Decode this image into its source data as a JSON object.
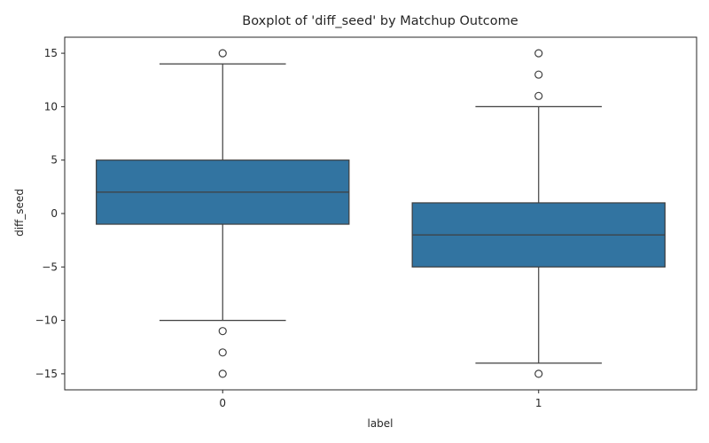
{
  "chart_data": {
    "type": "boxplot",
    "title": "Boxplot of 'diff_seed' by Matchup Outcome",
    "xlabel": "label",
    "ylabel": "diff_seed",
    "ylim": [
      -16.5,
      16.5
    ],
    "yticks": [
      -15,
      -10,
      -5,
      0,
      5,
      10,
      15
    ],
    "ytick_labels": [
      "−15",
      "−10",
      "−5",
      "0",
      "5",
      "10",
      "15"
    ],
    "categories": [
      "0",
      "1"
    ],
    "boxes": [
      {
        "category": "0",
        "whisker_low": -10,
        "q1": -1,
        "median": 2,
        "q3": 5,
        "whisker_high": 14,
        "outliers": [
          15,
          -11,
          -13,
          -15
        ]
      },
      {
        "category": "1",
        "whisker_low": -14,
        "q1": -5,
        "median": -2,
        "q3": 1,
        "whisker_high": 10,
        "outliers": [
          15,
          13,
          11,
          -15
        ]
      }
    ],
    "grid": false,
    "legend": "none"
  },
  "colors": {
    "box_fill": "#3274a1",
    "line": "#3f3f3f",
    "axis": "#262626"
  }
}
